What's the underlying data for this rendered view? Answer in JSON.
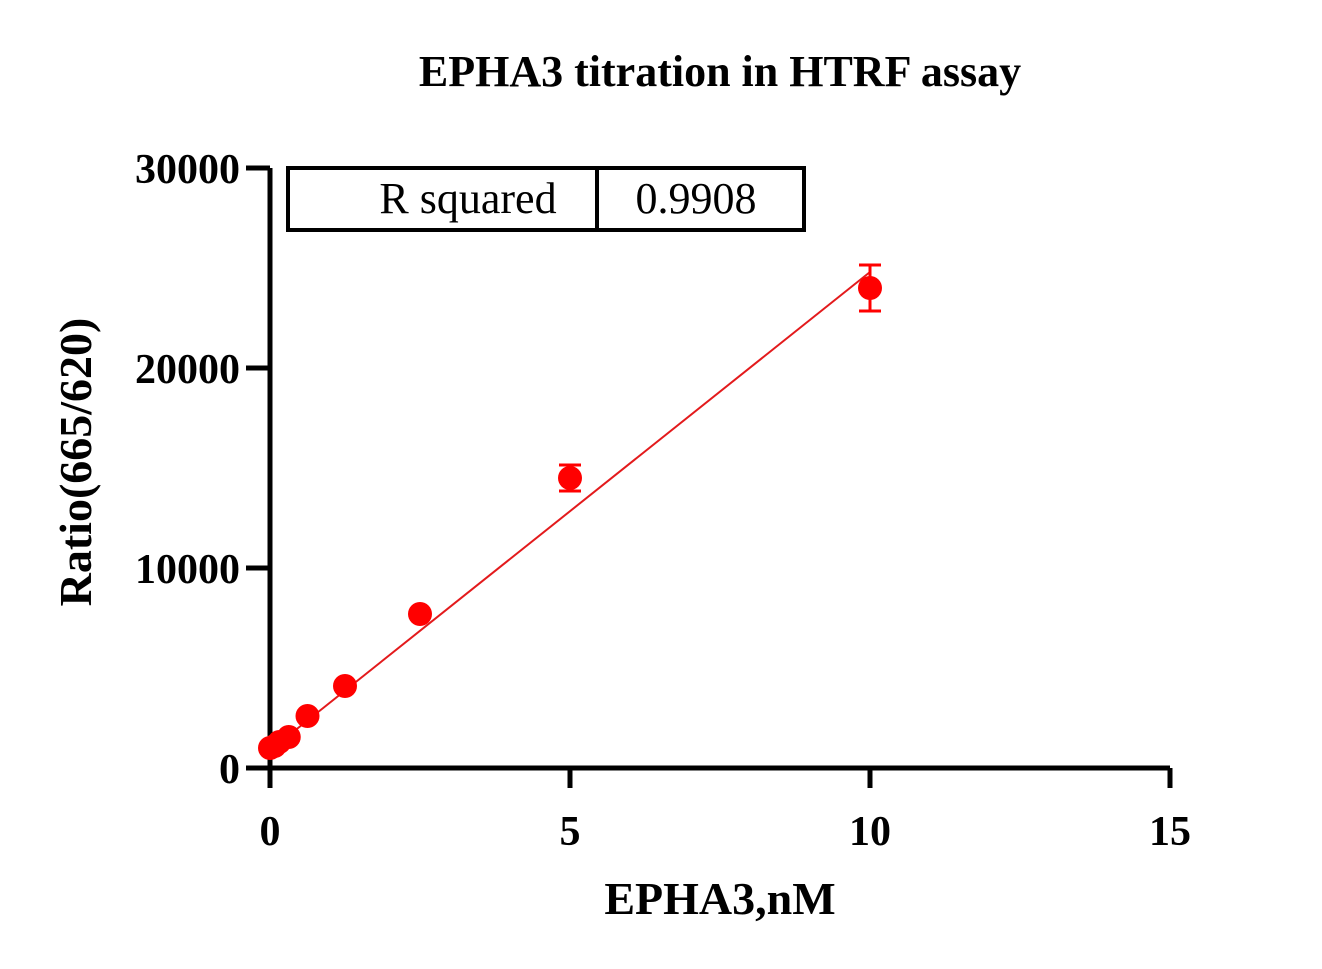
{
  "chart_data": {
    "type": "scatter",
    "title": "EPHA3 titration in HTRF assay",
    "xlabel": "EPHA3,nM",
    "ylabel": "Ratio(665/620)",
    "xlim": [
      0,
      15
    ],
    "ylim": [
      0,
      30000
    ],
    "x_ticks": [
      "0",
      "5",
      "10",
      "15"
    ],
    "y_ticks": [
      "0",
      "10000",
      "20000",
      "30000"
    ],
    "grid": false,
    "series": [
      {
        "x": [
          0.0,
          0.078,
          0.156,
          0.3125,
          0.625,
          1.25,
          2.5,
          5.0,
          10.0
        ],
        "values": [
          1000,
          1100,
          1300,
          1550,
          2600,
          4100,
          7700,
          14500,
          24000
        ],
        "error": [
          0,
          0,
          0,
          0,
          0,
          0,
          0,
          650,
          1150
        ],
        "color": "#ff0000"
      }
    ],
    "fit_line": {
      "x": [
        0,
        10
      ],
      "y": [
        880,
        24800
      ],
      "color": "#e31a1c"
    },
    "stats_table": {
      "label": "R squared",
      "value": "0.9908"
    }
  }
}
